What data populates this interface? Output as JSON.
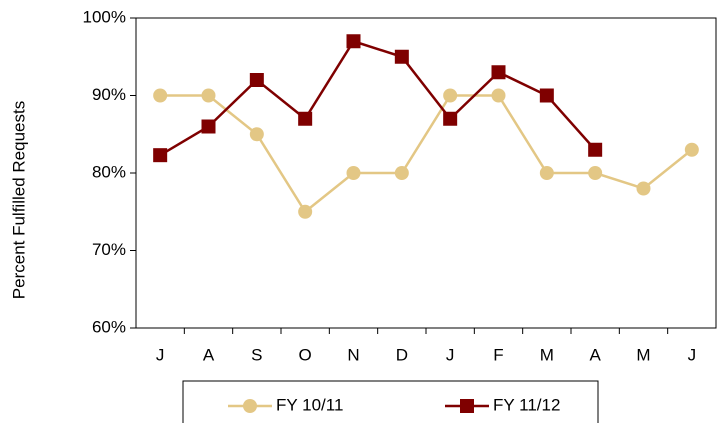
{
  "chart_data": {
    "type": "line",
    "y_label": "Percent Fulfilled Requests",
    "categories": [
      "J",
      "A",
      "S",
      "O",
      "N",
      "D",
      "J",
      "F",
      "M",
      "A",
      "M",
      "J"
    ],
    "series": [
      {
        "name": "FY 10/11",
        "color": "#e3c785",
        "marker": "circle",
        "values": [
          90,
          90,
          85,
          75,
          80,
          80,
          90,
          90,
          80,
          80,
          78,
          83
        ]
      },
      {
        "name": "FY 11/12",
        "color": "#7f0000",
        "marker": "square",
        "values": [
          82.3,
          86,
          92,
          87,
          97,
          95,
          87,
          93,
          90,
          83,
          null,
          null
        ]
      }
    ],
    "ylim": [
      60,
      100
    ],
    "yticks": [
      {
        "value": 60,
        "label": "60%"
      },
      {
        "value": 70,
        "label": "70%"
      },
      {
        "value": 80,
        "label": "80%"
      },
      {
        "value": 90,
        "label": "90%"
      },
      {
        "value": 100,
        "label": "100%"
      }
    ],
    "grid": false,
    "legend": "bottom"
  }
}
